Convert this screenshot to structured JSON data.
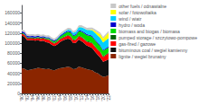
{
  "chart_data": {
    "type": "area",
    "stacked": true,
    "categories": [
      "'90",
      null,
      "'92",
      null,
      "'94",
      null,
      "'96",
      null,
      "'98",
      null,
      "'00",
      null,
      "'02",
      null,
      "'04",
      null,
      "'06",
      null,
      "'08",
      null,
      "'10",
      null,
      "'12",
      null,
      "'14",
      null,
      "'16",
      null,
      "'18",
      null,
      "'20",
      null,
      "'22"
    ],
    "series": [
      {
        "name": "lignite / wegiel brunatny",
        "color": "#8b2500",
        "values": [
          50000,
          49000,
          46000,
          47000,
          48000,
          49000,
          51000,
          50000,
          49000,
          48000,
          49000,
          47000,
          46000,
          48000,
          50000,
          51000,
          52000,
          53000,
          52000,
          48000,
          49000,
          53000,
          52000,
          50000,
          48000,
          47000,
          46000,
          42000,
          40000,
          36000,
          33000,
          34000,
          36000
        ]
      },
      {
        "name": "bituminous coal / wegiel kamienny",
        "color": "#111111",
        "values": [
          65000,
          64000,
          60000,
          59000,
          58000,
          56000,
          55000,
          54000,
          56000,
          54000,
          52000,
          50000,
          48000,
          49000,
          52000,
          54000,
          55000,
          56000,
          55000,
          52000,
          52000,
          54000,
          52000,
          50000,
          47000,
          46000,
          44000,
          41000,
          37000,
          35000,
          30000,
          31000,
          32000
        ]
      },
      {
        "name": "gas-fired / gazowe",
        "color": "#ff0000",
        "values": [
          3500,
          3500,
          3500,
          3500,
          3500,
          3500,
          4000,
          4500,
          4500,
          5000,
          5500,
          5000,
          5000,
          5000,
          5000,
          5000,
          5500,
          6000,
          6000,
          5500,
          5500,
          6500,
          7500,
          7500,
          7500,
          8500,
          9500,
          9500,
          9500,
          10500,
          9500,
          11000,
          12000
        ]
      },
      {
        "name": "pumped storage / szczytowo-pompowe",
        "color": "#006400",
        "values": [
          1500,
          1500,
          1500,
          1500,
          1500,
          1500,
          1500,
          1500,
          1500,
          1500,
          1500,
          1500,
          1500,
          1500,
          1500,
          1500,
          1500,
          1500,
          1500,
          1500,
          1500,
          1500,
          1500,
          1500,
          1500,
          1500,
          1500,
          1500,
          1500,
          1500,
          1500,
          1500,
          1500
        ]
      },
      {
        "name": "biomass and biogas / biomasa",
        "color": "#00dd00",
        "values": [
          800,
          800,
          800,
          800,
          800,
          800,
          800,
          800,
          800,
          1200,
          1700,
          2200,
          2700,
          3200,
          3700,
          4700,
          5700,
          6200,
          6700,
          7200,
          7700,
          8700,
          9700,
          10700,
          11700,
          11700,
          11700,
          11700,
          11700,
          10700,
          10700,
          10700,
          9700
        ]
      },
      {
        "name": "hydro / woda",
        "color": "#0000cd",
        "values": [
          2500,
          3000,
          2500,
          2000,
          2500,
          2500,
          2500,
          2000,
          2000,
          2000,
          2000,
          2000,
          2000,
          2000,
          2000,
          2000,
          2000,
          2000,
          2000,
          2000,
          2000,
          2000,
          2000,
          2000,
          2000,
          2000,
          2000,
          2000,
          2000,
          2000,
          2000,
          2000,
          2000
        ]
      },
      {
        "name": "wind / wiatr",
        "color": "#00cfff",
        "values": [
          0,
          0,
          0,
          0,
          0,
          0,
          0,
          0,
          80,
          160,
          250,
          350,
          450,
          600,
          900,
          1300,
          1800,
          2300,
          3200,
          4200,
          5200,
          6200,
          7200,
          7700,
          8700,
          9700,
          10700,
          12700,
          13700,
          14700,
          14700,
          15700,
          16700
        ]
      },
      {
        "name": "solar / fotowoltaika",
        "color": "#ffff00",
        "values": [
          0,
          0,
          0,
          0,
          0,
          0,
          0,
          0,
          0,
          0,
          0,
          0,
          0,
          0,
          0,
          0,
          0,
          0,
          0,
          0,
          40,
          80,
          160,
          240,
          400,
          900,
          1800,
          3800,
          5300,
          6800,
          7800,
          8800,
          10800
        ]
      },
      {
        "name": "other fuels / odnawialne",
        "color": "#c8c8c8",
        "values": [
          3500,
          3500,
          3500,
          3500,
          3500,
          3500,
          3500,
          3500,
          3500,
          3500,
          3500,
          3500,
          3500,
          3500,
          3500,
          3500,
          3500,
          3500,
          3500,
          3500,
          3500,
          3500,
          3500,
          3500,
          3500,
          3500,
          3500,
          3500,
          3500,
          3500,
          3500,
          3500,
          3500
        ]
      }
    ],
    "ylim": [
      0,
      175000
    ],
    "yticks": [
      0,
      20000,
      40000,
      60000,
      80000,
      100000,
      120000,
      140000,
      160000
    ],
    "grid": false,
    "legend": "right"
  }
}
